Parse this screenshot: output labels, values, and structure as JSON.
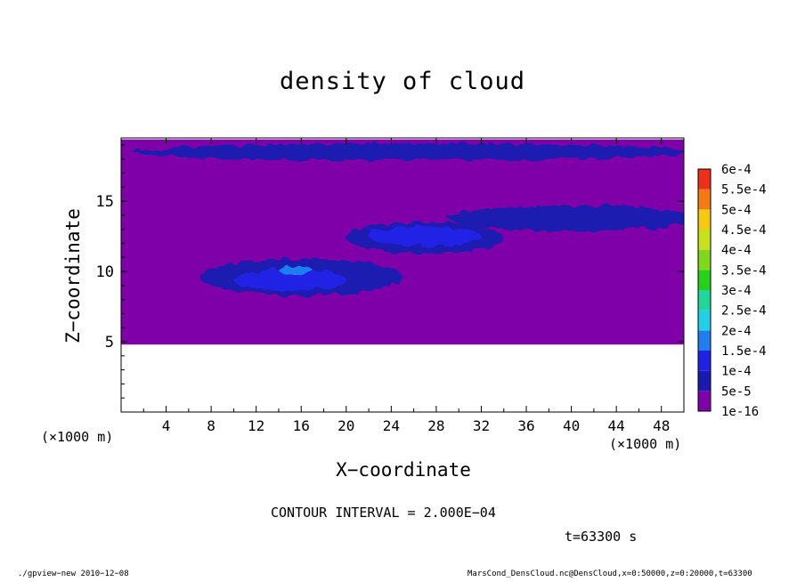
{
  "title": "density of cloud",
  "x_unit_left": "(×1000 m)",
  "x_unit_right": "(×1000 m)",
  "xlabel": "X−coordinate",
  "ylabel": "Z−coordinate",
  "contour_interval": "CONTOUR INTERVAL = 2.000E−04",
  "time": "t=63300 s",
  "footer_left": "./gpview−new  2010−12−08",
  "footer_right": "MarsCond_DensCloud.nc@DensCloud,x=0:50000,z=0:20000,t=63300",
  "chart_data": {
    "type": "heatmap",
    "title": "density of cloud",
    "xlabel": "X-coordinate",
    "ylabel": "Z-coordinate",
    "xlim": [
      0,
      50
    ],
    "ylim": [
      0,
      19.5
    ],
    "x_ticks": [
      4,
      8,
      12,
      16,
      20,
      24,
      28,
      32,
      36,
      40,
      44,
      48
    ],
    "y_ticks": [
      5,
      10,
      15
    ],
    "colorbar": {
      "labels": [
        "1e-16",
        "5e-5",
        "1e-4",
        "1.5e-4",
        "2e-4",
        "2.5e-4",
        "3e-4",
        "3.5e-4",
        "4e-4",
        "4.5e-4",
        "5e-4",
        "5.5e-4",
        "6e-4"
      ],
      "colors": [
        "#7f00a8",
        "#1a1ab0",
        "#2222e6",
        "#1e7ef0",
        "#21cfe6",
        "#1ed89a",
        "#27d11a",
        "#7fd81a",
        "#c8e21a",
        "#f5c812",
        "#f57a12",
        "#ee3018",
        "#f58080"
      ]
    },
    "cloud_base_z": 4.8,
    "regions": [
      {
        "level": "1e-16",
        "z_range": [
          4.8,
          19.4
        ],
        "x_range": [
          0,
          50
        ]
      },
      {
        "level": "5e-5",
        "center": [
          26,
          18.5
        ],
        "extent": [
          50,
          1.2
        ]
      },
      {
        "level": "5e-5",
        "center": [
          40,
          13.8
        ],
        "extent": [
          22,
          1.8
        ]
      },
      {
        "level": "5e-5",
        "center": [
          27,
          12.4
        ],
        "extent": [
          14,
          2.2
        ]
      },
      {
        "level": "5e-5",
        "center": [
          16,
          9.6
        ],
        "extent": [
          18,
          2.6
        ]
      },
      {
        "level": "1e-4",
        "center": [
          27,
          12.5
        ],
        "extent": [
          10,
          1.4
        ]
      },
      {
        "level": "1e-4",
        "center": [
          15,
          9.4
        ],
        "extent": [
          10,
          1.5
        ]
      },
      {
        "level": "1.5e-4",
        "center": [
          15.5,
          10.1
        ],
        "extent": [
          3,
          0.6
        ]
      }
    ]
  }
}
